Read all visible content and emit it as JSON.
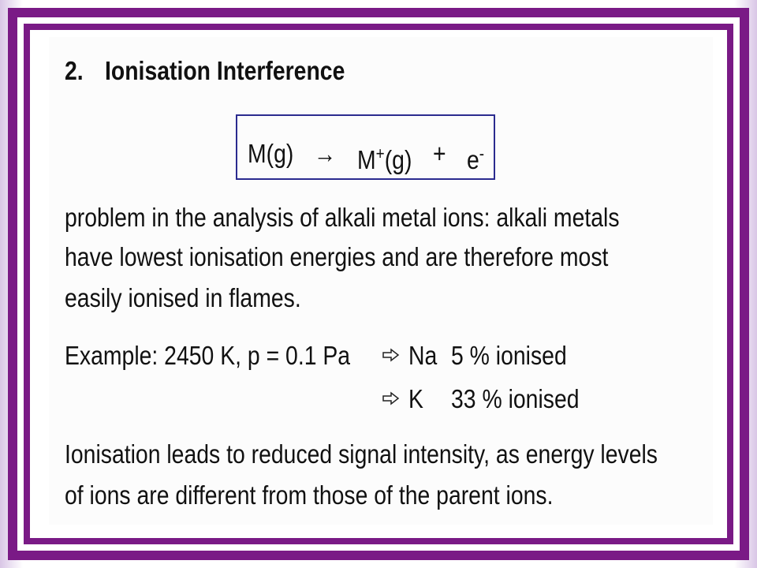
{
  "title": {
    "number": "2.",
    "text": "Ionisation Interference"
  },
  "equation": {
    "reactant": "M(g)",
    "arrow": "→",
    "product": "M",
    "product_charge": "+",
    "product_state": "(g)",
    "plus": "+",
    "electron": "e",
    "electron_charge": "-"
  },
  "paragraph": [
    "problem in the analysis of alkali metal ions: alkali metals",
    "have lowest ionisation energies and are therefore most",
    "easily ionised in flames."
  ],
  "example": {
    "label": "Example: 2450 K, p = 0.1 Pa",
    "items": [
      {
        "element": "Na",
        "value": "5 % ionised"
      },
      {
        "element": "K",
        "value": "33 % ionised"
      }
    ]
  },
  "conclusion": [
    "Ionisation leads to reduced signal intensity, as energy levels",
    "of ions are different from those of the parent ions."
  ]
}
